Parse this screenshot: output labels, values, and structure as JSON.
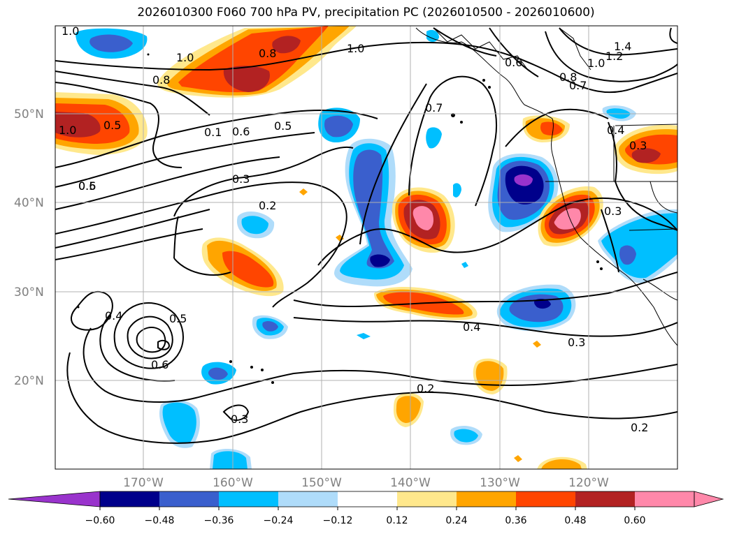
{
  "title": "2026010300 F060 700 hPa PV, precipitation PC (2026010500 - 2026010600)",
  "lat_labels": [
    "50°N",
    "40°N",
    "30°N",
    "20°N"
  ],
  "lon_labels": [
    "170°W",
    "160°W",
    "150°W",
    "140°W",
    "130°W",
    "120°W"
  ],
  "colorbar": {
    "tick_labels": [
      "−0.60",
      "−0.48",
      "−0.36",
      "−0.24",
      "−0.12",
      "0.12",
      "0.24",
      "0.36",
      "0.48",
      "0.60"
    ],
    "colors": [
      "#9933cc",
      "#00008b",
      "#3a5fcd",
      "#00bfff",
      "#afdcfa",
      "#ffffff",
      "#ffe88c",
      "#ffa500",
      "#ff4500",
      "#b22222",
      "#ff88aa",
      "#ff88aa"
    ]
  },
  "contour_labels": [
    "1.0",
    "1.0",
    "0.8",
    "0.8",
    "1.0",
    "0.6",
    "1.4",
    "1.2",
    "1.0",
    "0.8",
    "0.7",
    "0.5",
    "0.5",
    "1.0",
    "0.1",
    "0.6",
    "0.5",
    "0.7",
    "0.4",
    "0.3",
    "0.6",
    "0.3",
    "0.2",
    "0.3",
    "0.4",
    "0.5",
    "0.6",
    "0.4",
    "0.3",
    "0.2",
    "0.3",
    "0.2"
  ],
  "colors": {
    "land_line": "#000000",
    "grid": "#b0b0b0"
  }
}
